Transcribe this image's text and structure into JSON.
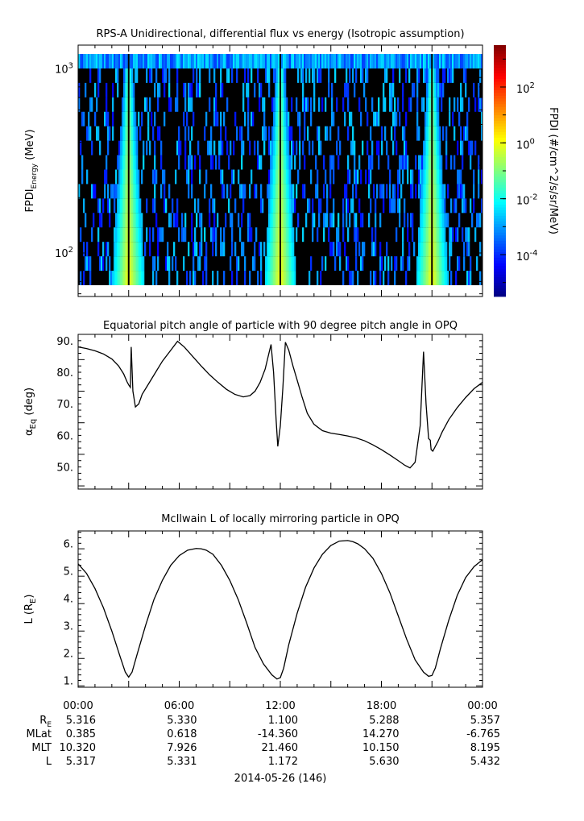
{
  "chart_data": [
    {
      "type": "heatmap",
      "title": "RPS-A Unidirectional, differential flux vs energy (Isotropic assumption)",
      "ylabel": "FPDI",
      "ylabel_sub": "Energy",
      "ylabel_unit": "(MeV)",
      "yscale": "log",
      "ylim": [
        58,
        1350
      ],
      "yticks": [
        {
          "value": 100,
          "base": "10",
          "exp": "2"
        },
        {
          "value": 1000,
          "base": "10",
          "exp": "3"
        }
      ],
      "xlim_hours": [
        0,
        24
      ],
      "colorbar": {
        "label": "FPDI (#/cm^2/s/sr/MeV)",
        "scale": "log",
        "range_log10": [
          -5.5,
          3.5
        ],
        "ticks": [
          {
            "value": -4,
            "base": "10",
            "exp": "-4"
          },
          {
            "value": -2,
            "base": "10",
            "exp": "-2"
          },
          {
            "value": 0,
            "base": "10",
            "exp": "0"
          },
          {
            "value": 2,
            "base": "10",
            "exp": "2"
          }
        ]
      },
      "belt_passes_hours": [
        3.0,
        12.0,
        21.0
      ],
      "colors": [
        "#00008f",
        "#0000ff",
        "#0080ff",
        "#00ffff",
        "#00ff80",
        "#80ff00",
        "#ffff00",
        "#ff8000",
        "#ff0000",
        "#800000"
      ]
    },
    {
      "type": "line",
      "title": "Equatorial pitch angle of particle with 90 degree pitch angle in OPQ",
      "ylabel": "α",
      "ylabel_sub": "Eq",
      "ylabel_unit": "(deg)",
      "ylim": [
        43,
        92
      ],
      "yticks": [
        "50.",
        "60.",
        "70.",
        "80.",
        "90."
      ],
      "x_hours": [
        0,
        0.5,
        1,
        1.5,
        2,
        2.4,
        2.7,
        2.9,
        3.0,
        3.1,
        3.15,
        3.25,
        3.4,
        3.6,
        3.8,
        4.2,
        4.6,
        5.0,
        5.5,
        5.9,
        6.3,
        6.8,
        7.3,
        7.8,
        8.3,
        8.8,
        9.3,
        9.8,
        10.2,
        10.5,
        10.8,
        11.1,
        11.3,
        11.45,
        11.6,
        11.75,
        11.85,
        12.0,
        12.15,
        12.3,
        12.5,
        12.75,
        13.0,
        13.3,
        13.6,
        14.0,
        14.5,
        15.0,
        15.5,
        16.0,
        16.5,
        17.0,
        17.5,
        18.0,
        18.5,
        19.0,
        19.4,
        19.7,
        20.0,
        20.3,
        20.5,
        20.65,
        20.8,
        20.9,
        20.95,
        21.05,
        21.1,
        21.2,
        21.35,
        21.6,
        22.0,
        22.5,
        23.0,
        23.5,
        24.0
      ],
      "values": [
        88.0,
        87.5,
        86.8,
        85.8,
        84.2,
        82.0,
        79.5,
        77.0,
        76.0,
        75.2,
        88.0,
        74.0,
        69.0,
        70.0,
        73.0,
        76.5,
        80.0,
        83.5,
        87.0,
        89.8,
        88.0,
        85.0,
        82.0,
        79.2,
        76.8,
        74.6,
        73.0,
        72.2,
        72.6,
        74.0,
        76.8,
        81.0,
        85.5,
        88.8,
        80.0,
        65.0,
        56.5,
        63.0,
        75.0,
        89.5,
        87.0,
        82.0,
        77.5,
        72.0,
        67.0,
        63.5,
        61.5,
        60.7,
        60.3,
        59.8,
        59.2,
        58.3,
        57.0,
        55.5,
        53.8,
        52.0,
        50.5,
        49.7,
        51.5,
        63.0,
        86.5,
        70.0,
        59.0,
        58.5,
        55.5,
        55.0,
        55.5,
        56.5,
        58.0,
        61.0,
        65.0,
        68.8,
        72.0,
        74.8,
        76.8
      ]
    },
    {
      "type": "line",
      "title": "McIlwain L of locally mirroring particle in OPQ",
      "ylabel": "L (R",
      "ylabel_sub": "E",
      "ylabel_unit": ")",
      "ylim": [
        0.75,
        6.45
      ],
      "yticks": [
        "1.",
        "2.",
        "3.",
        "4.",
        "5.",
        "6."
      ],
      "x_hours": [
        0,
        0.5,
        1.0,
        1.5,
        2.0,
        2.5,
        2.8,
        3.0,
        3.2,
        3.5,
        4.0,
        4.5,
        5.0,
        5.5,
        6.0,
        6.5,
        7.0,
        7.3,
        7.6,
        8.0,
        8.5,
        9.0,
        9.5,
        10.0,
        10.5,
        11.0,
        11.5,
        11.8,
        12.0,
        12.2,
        12.5,
        13.0,
        13.5,
        14.0,
        14.5,
        15.0,
        15.5,
        16.0,
        16.3,
        16.6,
        17.0,
        17.5,
        18.0,
        18.5,
        19.0,
        19.5,
        20.0,
        20.5,
        20.8,
        21.0,
        21.2,
        21.5,
        22.0,
        22.5,
        23.0,
        23.5,
        24.0
      ],
      "values": [
        5.25,
        4.9,
        4.35,
        3.65,
        2.8,
        1.85,
        1.3,
        1.12,
        1.3,
        1.95,
        3.0,
        3.95,
        4.65,
        5.2,
        5.55,
        5.75,
        5.81,
        5.8,
        5.75,
        5.6,
        5.2,
        4.65,
        3.95,
        3.1,
        2.2,
        1.6,
        1.2,
        1.05,
        1.1,
        1.45,
        2.3,
        3.45,
        4.4,
        5.1,
        5.6,
        5.92,
        6.08,
        6.1,
        6.06,
        5.98,
        5.8,
        5.45,
        4.9,
        4.2,
        3.35,
        2.5,
        1.75,
        1.3,
        1.15,
        1.18,
        1.45,
        2.15,
        3.2,
        4.1,
        4.75,
        5.15,
        5.4
      ]
    }
  ],
  "x_axis": {
    "ticks": [
      "00:00",
      "06:00",
      "12:00",
      "18:00",
      "00:00"
    ],
    "date_label": "2014-05-26 (146)"
  },
  "ephemeris": {
    "rows": [
      {
        "label": "R",
        "sub": "E",
        "values": [
          "5.316",
          "5.330",
          "1.100",
          "5.288",
          "5.357"
        ]
      },
      {
        "label": "MLat",
        "sub": "",
        "values": [
          "0.385",
          "0.618",
          "-14.360",
          "14.270",
          "-6.765"
        ]
      },
      {
        "label": "MLT",
        "sub": "",
        "values": [
          "10.320",
          "7.926",
          "21.460",
          "10.150",
          "8.195"
        ]
      },
      {
        "label": "L",
        "sub": "",
        "values": [
          "5.317",
          "5.331",
          "1.172",
          "5.630",
          "5.432"
        ]
      }
    ]
  }
}
